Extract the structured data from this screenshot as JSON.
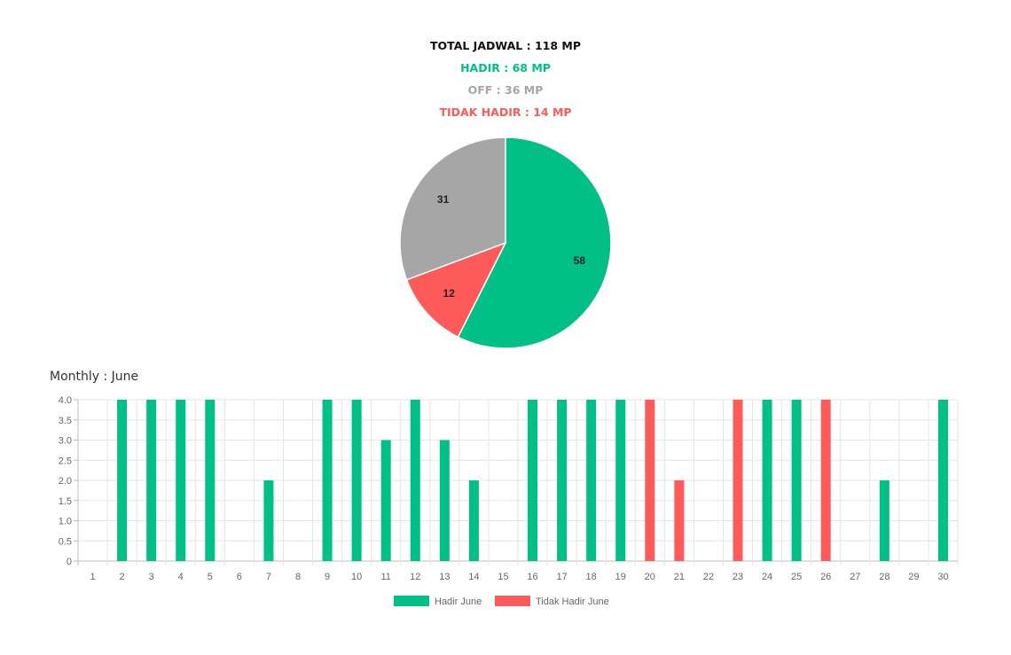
{
  "summary": {
    "total": "TOTAL JADWAL : 118 MP",
    "hadir": "HADIR : 68 MP",
    "off": "OFF : 36 MP",
    "tidak_hadir": "TIDAK HADIR : 14 MP"
  },
  "colors": {
    "hadir": "#00bf87",
    "off": "#a6a6a6",
    "tidak_hadir": "#fe5a5a",
    "total": "#111111"
  },
  "monthly_title": "Monthly : June",
  "chart_data": [
    {
      "type": "pie",
      "categories": [
        "Hadir",
        "Tidak Hadir",
        "Off"
      ],
      "values": [
        58,
        12,
        31
      ],
      "colors": [
        "#00bf87",
        "#fe5a5a",
        "#a6a6a6"
      ]
    },
    {
      "type": "bar",
      "categories": [
        "1",
        "2",
        "3",
        "4",
        "5",
        "6",
        "7",
        "8",
        "9",
        "10",
        "11",
        "12",
        "13",
        "14",
        "15",
        "16",
        "17",
        "18",
        "19",
        "20",
        "21",
        "22",
        "23",
        "24",
        "25",
        "26",
        "27",
        "28",
        "29",
        "30"
      ],
      "series": [
        {
          "name": "Hadir June",
          "color": "#00bf87",
          "values": [
            0,
            4,
            4,
            4,
            4,
            0,
            2,
            0,
            4,
            4,
            3,
            4,
            3,
            2,
            0,
            4,
            4,
            4,
            4,
            0,
            0,
            0,
            0,
            4,
            4,
            0,
            0,
            2,
            0,
            4
          ]
        },
        {
          "name": "Tidak Hadir June",
          "color": "#fe5a5a",
          "values": [
            0,
            0,
            0,
            0,
            0,
            0,
            0,
            0,
            0,
            0,
            0,
            0,
            0,
            0,
            0,
            0,
            0,
            0,
            0,
            4,
            2,
            0,
            4,
            0,
            0,
            4,
            0,
            0,
            0,
            0
          ]
        }
      ],
      "yticks": [
        "0",
        "0.5",
        "1.0",
        "1.5",
        "2.0",
        "2.5",
        "3.0",
        "3.5",
        "4.0"
      ],
      "ylim": [
        0,
        4
      ],
      "grid": true,
      "legend": "bottom"
    }
  ]
}
